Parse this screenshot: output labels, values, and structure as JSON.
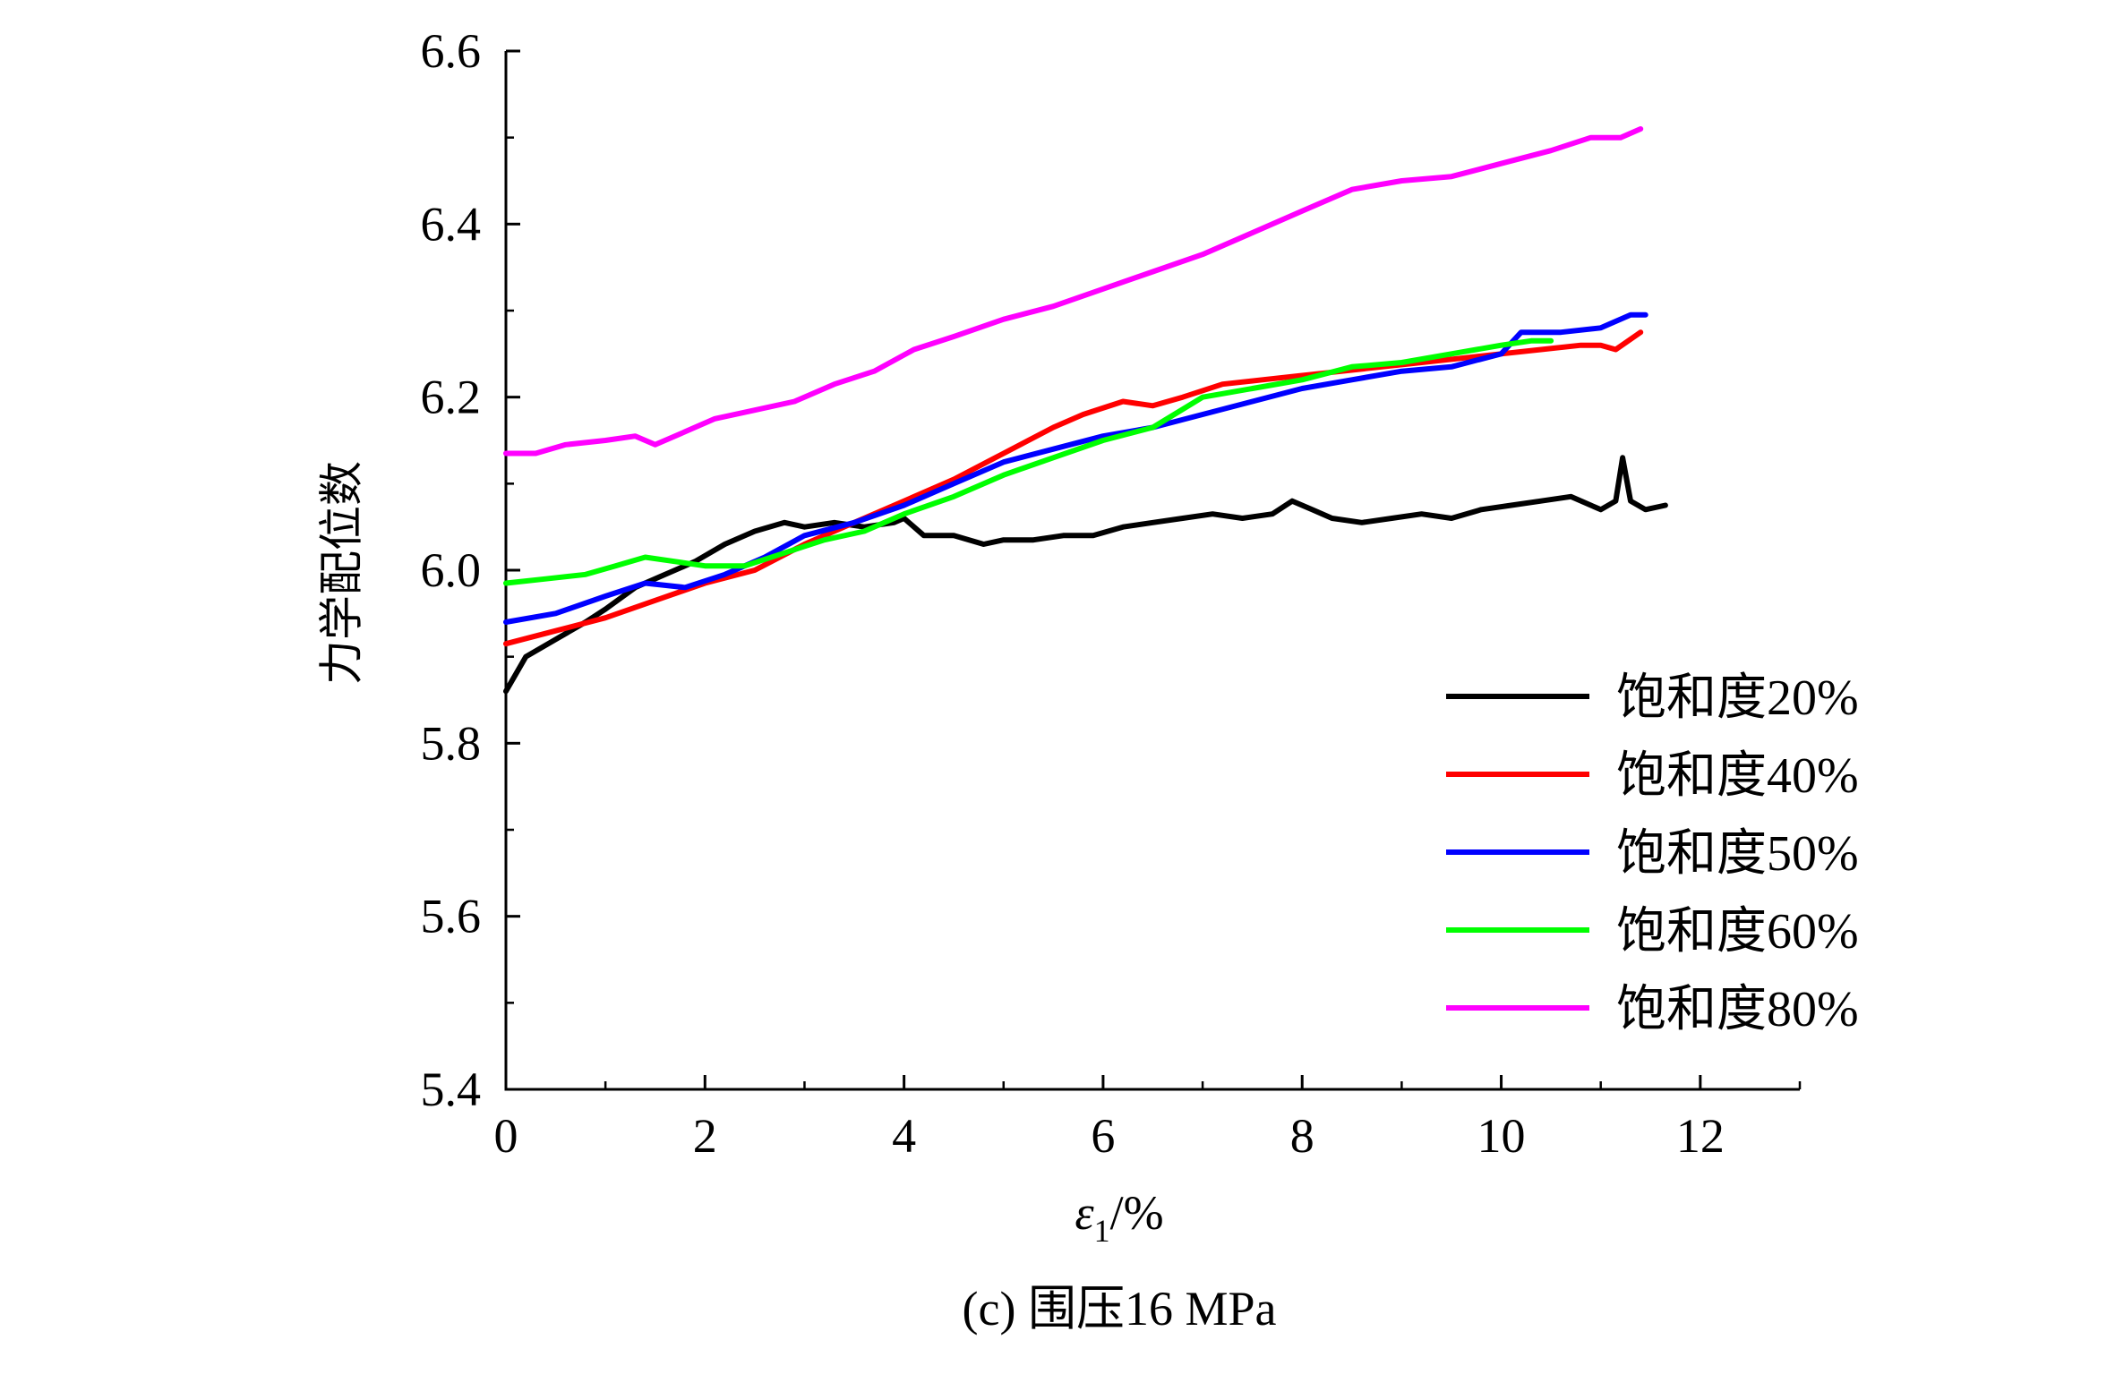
{
  "chart_data": {
    "type": "line",
    "xlabel": "ε1/%",
    "xlabel_main": "ε",
    "xlabel_sub": "1",
    "xlabel_unit": "/%",
    "ylabel": "力学配位数",
    "caption": "(c) 围压16 MPa",
    "xlim": [
      0,
      13
    ],
    "ylim": [
      5.4,
      6.6
    ],
    "x_ticks": [
      0,
      2,
      4,
      6,
      8,
      10,
      12
    ],
    "x_tick_labels": [
      "0",
      "2",
      "4",
      "6",
      "8",
      "10",
      "12"
    ],
    "y_ticks": [
      5.4,
      5.6,
      5.8,
      6.0,
      6.2,
      6.4,
      6.6
    ],
    "y_tick_labels": [
      "5.4",
      "5.6",
      "5.8",
      "6.0",
      "6.2",
      "6.4",
      "6.6"
    ],
    "grid": false,
    "legend_position": "bottom-right",
    "series": [
      {
        "name": "饱和度20%",
        "color": "#000000",
        "points": [
          [
            0,
            5.86
          ],
          [
            0.2,
            5.9
          ],
          [
            0.5,
            5.92
          ],
          [
            0.8,
            5.94
          ],
          [
            1.0,
            5.955
          ],
          [
            1.3,
            5.98
          ],
          [
            1.6,
            5.995
          ],
          [
            1.9,
            6.01
          ],
          [
            2.2,
            6.03
          ],
          [
            2.5,
            6.045
          ],
          [
            2.8,
            6.055
          ],
          [
            3.0,
            6.05
          ],
          [
            3.3,
            6.055
          ],
          [
            3.6,
            6.05
          ],
          [
            3.9,
            6.055
          ],
          [
            4.0,
            6.06
          ],
          [
            4.2,
            6.04
          ],
          [
            4.5,
            6.04
          ],
          [
            4.8,
            6.03
          ],
          [
            5.0,
            6.035
          ],
          [
            5.3,
            6.035
          ],
          [
            5.6,
            6.04
          ],
          [
            5.9,
            6.04
          ],
          [
            6.2,
            6.05
          ],
          [
            6.5,
            6.055
          ],
          [
            6.8,
            6.06
          ],
          [
            7.1,
            6.065
          ],
          [
            7.4,
            6.06
          ],
          [
            7.7,
            6.065
          ],
          [
            7.9,
            6.08
          ],
          [
            8.1,
            6.07
          ],
          [
            8.3,
            6.06
          ],
          [
            8.6,
            6.055
          ],
          [
            8.9,
            6.06
          ],
          [
            9.2,
            6.065
          ],
          [
            9.5,
            6.06
          ],
          [
            9.8,
            6.07
          ],
          [
            10.1,
            6.075
          ],
          [
            10.4,
            6.08
          ],
          [
            10.7,
            6.085
          ],
          [
            11.0,
            6.07
          ],
          [
            11.15,
            6.08
          ],
          [
            11.22,
            6.13
          ],
          [
            11.3,
            6.08
          ],
          [
            11.45,
            6.07
          ],
          [
            11.65,
            6.075
          ]
        ]
      },
      {
        "name": "饱和度40%",
        "color": "#ff0000",
        "points": [
          [
            0,
            5.915
          ],
          [
            0.5,
            5.93
          ],
          [
            1.0,
            5.945
          ],
          [
            1.5,
            5.965
          ],
          [
            2.0,
            5.985
          ],
          [
            2.5,
            6.0
          ],
          [
            3.0,
            6.03
          ],
          [
            3.5,
            6.055
          ],
          [
            4.0,
            6.08
          ],
          [
            4.5,
            6.105
          ],
          [
            5.0,
            6.135
          ],
          [
            5.5,
            6.165
          ],
          [
            5.8,
            6.18
          ],
          [
            6.2,
            6.195
          ],
          [
            6.5,
            6.19
          ],
          [
            6.8,
            6.2
          ],
          [
            7.2,
            6.215
          ],
          [
            7.6,
            6.22
          ],
          [
            8.0,
            6.225
          ],
          [
            8.4,
            6.23
          ],
          [
            8.8,
            6.235
          ],
          [
            9.2,
            6.24
          ],
          [
            9.6,
            6.245
          ],
          [
            10.0,
            6.25
          ],
          [
            10.4,
            6.255
          ],
          [
            10.8,
            6.26
          ],
          [
            11.0,
            6.26
          ],
          [
            11.15,
            6.255
          ],
          [
            11.4,
            6.275
          ]
        ]
      },
      {
        "name": "饱和度50%",
        "color": "#0000ff",
        "points": [
          [
            0,
            5.94
          ],
          [
            0.5,
            5.95
          ],
          [
            1.0,
            5.97
          ],
          [
            1.4,
            5.985
          ],
          [
            1.8,
            5.98
          ],
          [
            2.2,
            5.995
          ],
          [
            2.6,
            6.015
          ],
          [
            3.0,
            6.04
          ],
          [
            3.5,
            6.055
          ],
          [
            4.0,
            6.075
          ],
          [
            4.5,
            6.1
          ],
          [
            5.0,
            6.125
          ],
          [
            5.5,
            6.14
          ],
          [
            6.0,
            6.155
          ],
          [
            6.5,
            6.165
          ],
          [
            7.0,
            6.18
          ],
          [
            7.5,
            6.195
          ],
          [
            8.0,
            6.21
          ],
          [
            8.5,
            6.22
          ],
          [
            9.0,
            6.23
          ],
          [
            9.5,
            6.235
          ],
          [
            10.0,
            6.25
          ],
          [
            10.2,
            6.275
          ],
          [
            10.6,
            6.275
          ],
          [
            11.0,
            6.28
          ],
          [
            11.3,
            6.295
          ],
          [
            11.45,
            6.295
          ]
        ]
      },
      {
        "name": "饱和度60%",
        "color": "#00ff00",
        "points": [
          [
            0,
            5.985
          ],
          [
            0.4,
            5.99
          ],
          [
            0.8,
            5.995
          ],
          [
            1.1,
            6.005
          ],
          [
            1.4,
            6.015
          ],
          [
            1.7,
            6.01
          ],
          [
            2.0,
            6.005
          ],
          [
            2.4,
            6.005
          ],
          [
            2.8,
            6.02
          ],
          [
            3.2,
            6.035
          ],
          [
            3.6,
            6.045
          ],
          [
            4.0,
            6.065
          ],
          [
            4.5,
            6.085
          ],
          [
            5.0,
            6.11
          ],
          [
            5.5,
            6.13
          ],
          [
            6.0,
            6.15
          ],
          [
            6.5,
            6.165
          ],
          [
            7.0,
            6.2
          ],
          [
            7.5,
            6.21
          ],
          [
            8.0,
            6.22
          ],
          [
            8.5,
            6.235
          ],
          [
            9.0,
            6.24
          ],
          [
            9.5,
            6.25
          ],
          [
            10.0,
            6.26
          ],
          [
            10.3,
            6.265
          ],
          [
            10.5,
            6.265
          ]
        ]
      },
      {
        "name": "饱和度80%",
        "color": "#ff00ff",
        "points": [
          [
            0,
            6.135
          ],
          [
            0.3,
            6.135
          ],
          [
            0.6,
            6.145
          ],
          [
            1.0,
            6.15
          ],
          [
            1.3,
            6.155
          ],
          [
            1.5,
            6.145
          ],
          [
            1.8,
            6.16
          ],
          [
            2.1,
            6.175
          ],
          [
            2.5,
            6.185
          ],
          [
            2.9,
            6.195
          ],
          [
            3.3,
            6.215
          ],
          [
            3.7,
            6.23
          ],
          [
            4.1,
            6.255
          ],
          [
            4.5,
            6.27
          ],
          [
            5.0,
            6.29
          ],
          [
            5.5,
            6.305
          ],
          [
            6.0,
            6.325
          ],
          [
            6.5,
            6.345
          ],
          [
            7.0,
            6.365
          ],
          [
            7.5,
            6.39
          ],
          [
            8.0,
            6.415
          ],
          [
            8.5,
            6.44
          ],
          [
            9.0,
            6.45
          ],
          [
            9.5,
            6.455
          ],
          [
            10.0,
            6.47
          ],
          [
            10.5,
            6.485
          ],
          [
            10.9,
            6.5
          ],
          [
            11.2,
            6.5
          ],
          [
            11.4,
            6.51
          ]
        ]
      }
    ]
  }
}
